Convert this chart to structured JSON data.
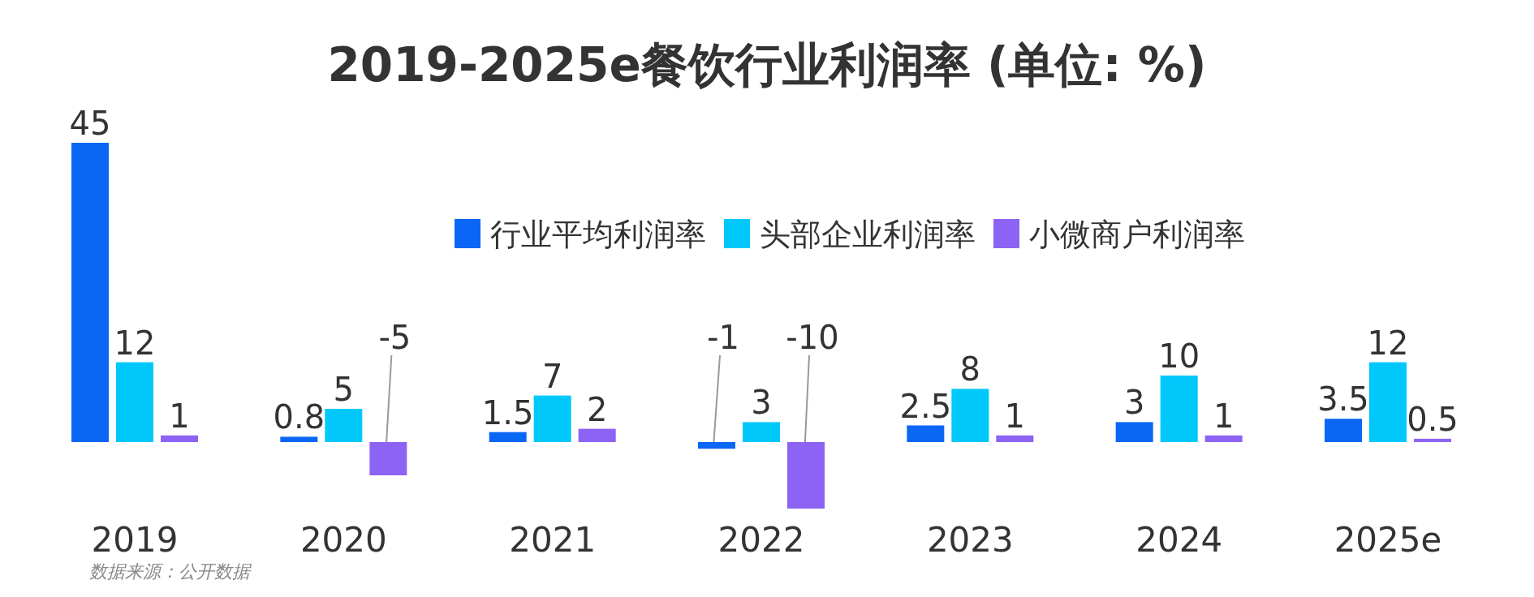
{
  "chart_data": {
    "type": "bar",
    "title": "2019-2025e餐饮行业利润率 (单位: %)",
    "categories": [
      "2019",
      "2020",
      "2021",
      "2022",
      "2023",
      "2024",
      "2025e"
    ],
    "series": [
      {
        "name": "行业平均利润率",
        "color": "#0a66f5",
        "values": [
          45,
          0.8,
          1.5,
          -1,
          2.5,
          3,
          3.5
        ]
      },
      {
        "name": "头部企业利润率",
        "color": "#00c8fb",
        "values": [
          12,
          5,
          7,
          3,
          8,
          10,
          12
        ]
      },
      {
        "name": "小微商户利润率",
        "color": "#8c63f5",
        "values": [
          1,
          -5,
          2,
          -10,
          1,
          1,
          0.5
        ]
      }
    ],
    "data_labels": true,
    "legend": "top right",
    "annotations": [
      "数据来源：公开数据"
    ]
  }
}
